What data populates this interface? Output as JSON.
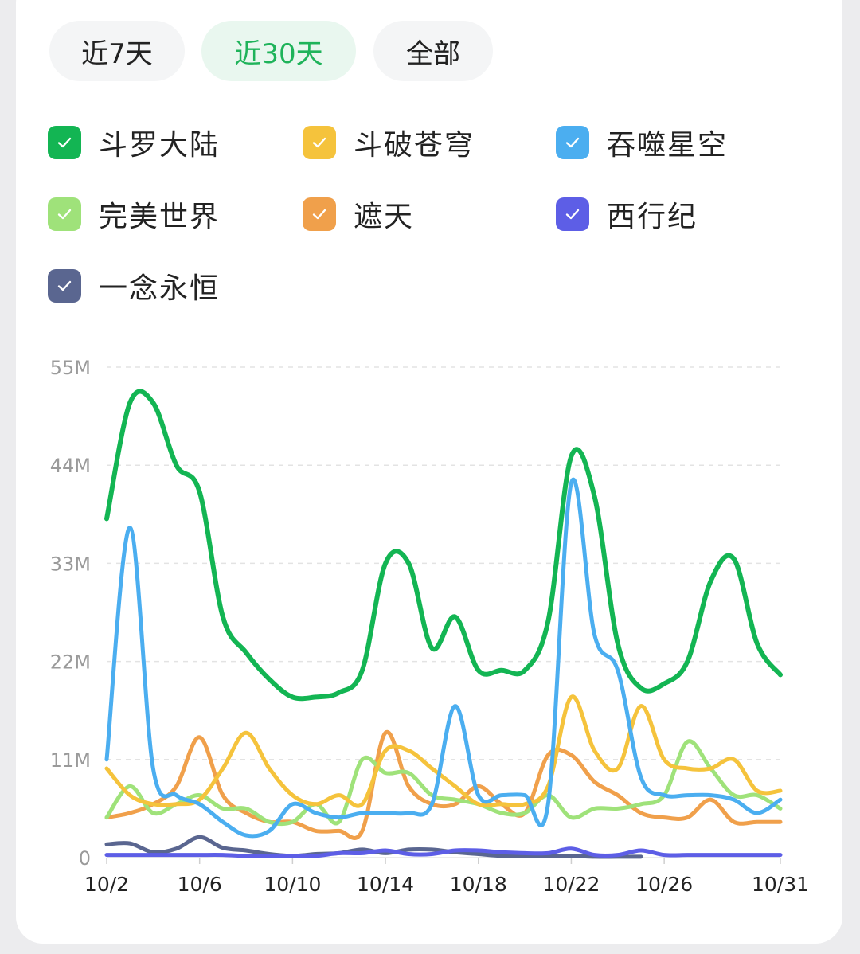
{
  "tabs": [
    {
      "label": "近7天",
      "active": false
    },
    {
      "label": "近30天",
      "active": true
    },
    {
      "label": "全部",
      "active": false
    }
  ],
  "colors": {
    "tab_active_text": "#1fb35a",
    "tab_active_bg": "#e9f7ef"
  },
  "legend": [
    {
      "label": "斗罗大陆",
      "color": "#13b553",
      "checked": true
    },
    {
      "label": "斗破苍穹",
      "color": "#f5c33c",
      "checked": true
    },
    {
      "label": "吞噬星空",
      "color": "#4baef0",
      "checked": true
    },
    {
      "label": "完美世界",
      "color": "#9fe27a",
      "checked": true
    },
    {
      "label": "遮天",
      "color": "#f0a04b",
      "checked": true
    },
    {
      "label": "西行纪",
      "color": "#5d5ee6",
      "checked": true
    },
    {
      "label": "一念永恒",
      "color": "#5a6690",
      "checked": true
    }
  ],
  "chart_data": {
    "type": "line",
    "x": [
      "10/2",
      "10/3",
      "10/4",
      "10/5",
      "10/6",
      "10/7",
      "10/8",
      "10/9",
      "10/10",
      "10/11",
      "10/12",
      "10/13",
      "10/14",
      "10/15",
      "10/16",
      "10/17",
      "10/18",
      "10/19",
      "10/20",
      "10/21",
      "10/22",
      "10/23",
      "10/24",
      "10/25",
      "10/26",
      "10/27",
      "10/28",
      "10/29",
      "10/30",
      "10/31"
    ],
    "xticks": [
      "10/2",
      "10/6",
      "10/10",
      "10/14",
      "10/18",
      "10/22",
      "10/26",
      "10/31"
    ],
    "yticks": [
      "0",
      "11M",
      "22M",
      "33M",
      "44M",
      "55M"
    ],
    "ylim": [
      0,
      55
    ],
    "grid": true,
    "series": [
      {
        "name": "斗罗大陆",
        "values": [
          38,
          51,
          51,
          44,
          41,
          27,
          23,
          20,
          18,
          18,
          18.5,
          21,
          33,
          33,
          23.5,
          27,
          21,
          21,
          21,
          26.5,
          45,
          40.5,
          24,
          19,
          19.5,
          22,
          31,
          33.5,
          24,
          20.5
        ]
      },
      {
        "name": "斗破苍穹",
        "values": [
          10,
          7,
          6,
          6,
          6.5,
          10,
          14,
          10,
          7,
          6,
          7,
          6,
          12,
          12,
          10,
          8,
          6,
          6,
          6,
          8,
          18,
          12,
          10,
          17,
          11,
          10,
          10,
          11,
          7.5,
          7.5
        ]
      },
      {
        "name": "吞噬星空",
        "values": [
          11,
          37,
          10,
          7,
          6,
          4,
          2.5,
          3,
          6,
          5,
          4.5,
          5,
          5,
          5,
          6,
          17,
          7,
          7,
          7,
          6,
          42,
          25,
          21,
          9,
          7,
          7,
          7,
          6.5,
          5,
          6.5
        ]
      },
      {
        "name": "完美世界",
        "values": [
          4.5,
          8,
          5,
          6,
          7,
          5.5,
          5.5,
          4,
          4,
          6,
          4,
          11,
          9.5,
          9.5,
          7,
          6.5,
          6,
          5,
          5,
          7,
          4.5,
          5.5,
          5.5,
          6,
          7,
          13,
          10,
          7,
          7,
          5.5
        ]
      },
      {
        "name": "遮天",
        "values": [
          4.5,
          5,
          6,
          8,
          13.5,
          7,
          5,
          4,
          4,
          3,
          3,
          3,
          14,
          8,
          6,
          6,
          8,
          6,
          5,
          11.5,
          11.5,
          8.5,
          7,
          5,
          4.5,
          4.5,
          6.5,
          4,
          4,
          4
        ]
      },
      {
        "name": "西行纪",
        "values": [
          0.3,
          0.3,
          0.3,
          0.3,
          0.3,
          0.3,
          0.2,
          0.2,
          0.2,
          0.2,
          0.5,
          0.5,
          0.8,
          0.4,
          0.4,
          0.8,
          0.8,
          0.6,
          0.5,
          0.5,
          1,
          0.3,
          0.3,
          0.8,
          0.3,
          0.3,
          0.3,
          0.3,
          0.3,
          0.3
        ]
      },
      {
        "name": "一念永恒",
        "values": [
          1.5,
          1.6,
          0.6,
          1,
          2.3,
          1.1,
          0.8,
          0.4,
          0.2,
          0.4,
          0.5,
          0.9,
          0.5,
          0.9,
          0.9,
          0.6,
          0.4,
          0.2,
          0.2,
          0.2,
          0.2,
          0.1,
          0.1,
          0.1,
          null,
          null,
          null,
          null,
          null,
          null
        ]
      }
    ]
  }
}
